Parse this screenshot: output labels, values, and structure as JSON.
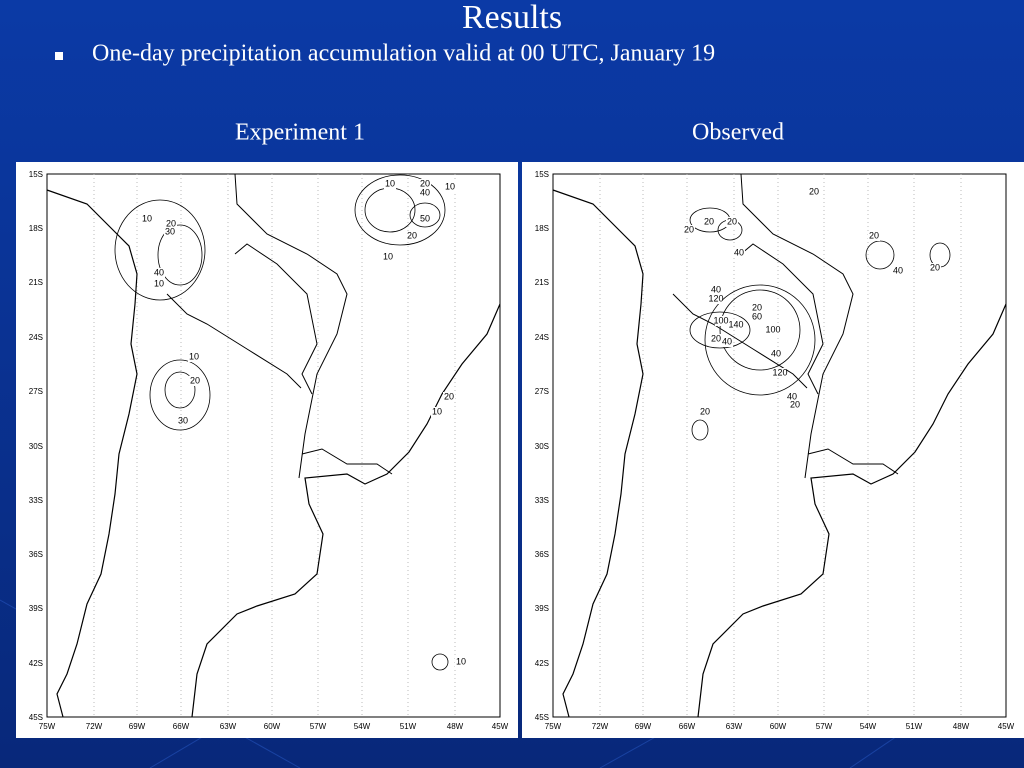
{
  "header": {
    "title": "Results",
    "bullet": "One-day precipitation accumulation valid at 00 UTC, January 19"
  },
  "panels": [
    {
      "title": "Experiment 1",
      "contour_labels": [
        10,
        20,
        10,
        40,
        50,
        20,
        10,
        10,
        20,
        30,
        40,
        10,
        10,
        20,
        30,
        20,
        10,
        10
      ]
    },
    {
      "title": "Observed",
      "contour_labels": [
        20,
        20,
        20,
        20,
        40,
        20,
        40,
        20,
        40,
        120,
        20,
        100,
        60,
        140,
        20,
        40,
        100,
        40,
        120,
        40,
        20,
        20
      ]
    }
  ],
  "lat_labels": [
    "15S",
    "18S",
    "21S",
    "24S",
    "27S",
    "30S",
    "33S",
    "36S",
    "39S",
    "42S",
    "45S"
  ],
  "lon_labels": [
    "75W",
    "72W",
    "69W",
    "66W",
    "63W",
    "60W",
    "57W",
    "54W",
    "51W",
    "48W",
    "45W"
  ]
}
